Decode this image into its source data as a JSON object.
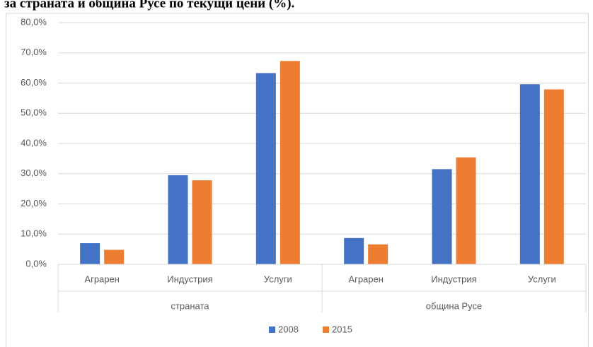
{
  "chart_data": {
    "type": "bar",
    "title": "за страната и община Русе по текущи цени (%).",
    "groups": [
      {
        "name": "страната",
        "categories": [
          "Аграрен",
          "Индустрия",
          "Услуги"
        ]
      },
      {
        "name": "община Русе",
        "categories": [
          "Аграрен",
          "Индустрия",
          "Услуги"
        ]
      }
    ],
    "series": [
      {
        "name": "2008",
        "color": "#4472c4",
        "values": [
          7.0,
          29.5,
          63.3,
          8.7,
          31.5,
          59.6
        ]
      },
      {
        "name": "2015",
        "color": "#ed7d31",
        "values": [
          4.8,
          27.8,
          67.3,
          6.6,
          35.4,
          57.9
        ]
      }
    ],
    "ylim": [
      0,
      80
    ],
    "yticks": [
      {
        "value": 0,
        "label": "0,0%"
      },
      {
        "value": 10,
        "label": "10,0%"
      },
      {
        "value": 20,
        "label": "20,0%"
      },
      {
        "value": 30,
        "label": "30,0%"
      },
      {
        "value": 40,
        "label": "40,0%"
      },
      {
        "value": 50,
        "label": "50,0%"
      },
      {
        "value": 60,
        "label": "60,0%"
      },
      {
        "value": 70,
        "label": "70,0%"
      },
      {
        "value": 80,
        "label": "80,0%"
      }
    ],
    "grid": true,
    "legend": "bottom"
  }
}
